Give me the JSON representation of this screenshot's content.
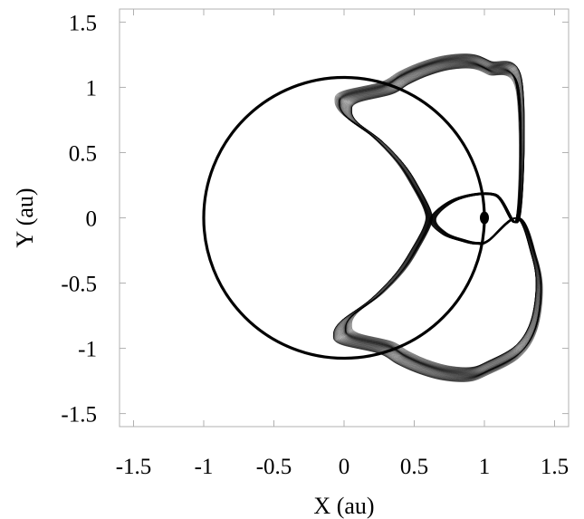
{
  "chart_data": {
    "type": "line",
    "title": "",
    "xlabel": "X (au)",
    "ylabel": "Y (au)",
    "xlim": [
      -1.6,
      1.6
    ],
    "ylim": [
      -1.6,
      1.6
    ],
    "xticks": [
      -1.5,
      -1,
      -0.5,
      0,
      0.5,
      1,
      1.5
    ],
    "xtick_labels": [
      "-1.5",
      "-1",
      "-0.5",
      "0",
      "0.5",
      "1",
      "1.5"
    ],
    "yticks": [
      -1.5,
      -1,
      -0.5,
      0,
      0.5,
      1,
      1.5
    ],
    "ytick_labels": [
      "-1.5",
      "-1",
      "-0.5",
      "0",
      "0.5",
      "1",
      "1.5"
    ],
    "grid": false,
    "legend": "none",
    "series": [
      {
        "kind": "circle",
        "center": [
          0,
          0
        ],
        "radius": 1.0
      },
      {
        "kind": "horseshoe-orbit",
        "x": [
          1.25,
          1.08,
          0.8,
          0.62,
          0.7,
          0.85,
          0.95,
          1.03,
          1.25,
          1.37,
          1.41,
          1.37,
          1.25,
          1.03,
          0.9,
          0.72,
          0.55,
          0.4,
          0.27,
          0.0,
          -0.05,
          0.0,
          0.2,
          0.38,
          0.5,
          0.58,
          0.58,
          0.5,
          0.38,
          0.2,
          0.0,
          -0.05,
          0.0,
          0.27,
          0.4,
          0.55,
          0.72,
          0.9,
          1.03,
          1.25
        ],
        "y": [
          0.0,
          0.18,
          0.15,
          0.0,
          -0.12,
          -0.18,
          -0.2,
          -0.18,
          0.0,
          -0.3,
          -0.55,
          -0.85,
          -1.05,
          -1.18,
          -1.23,
          -1.22,
          -1.17,
          -1.1,
          -1.02,
          -0.95,
          -0.88,
          -0.78,
          -0.62,
          -0.42,
          -0.22,
          -0.05,
          0.05,
          0.22,
          0.42,
          0.62,
          0.78,
          0.88,
          0.95,
          1.02,
          1.1,
          1.17,
          1.22,
          1.23,
          1.18,
          1.05
        ]
      },
      {
        "kind": "point",
        "x": 1.0,
        "y": 0.0
      }
    ]
  }
}
